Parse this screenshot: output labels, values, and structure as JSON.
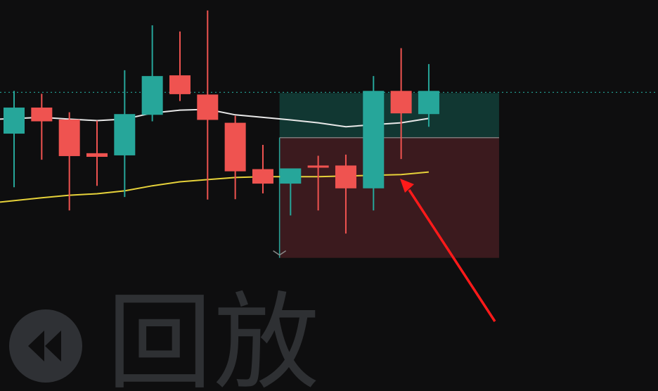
{
  "chart_data": {
    "type": "candlestick",
    "title": "",
    "xlabel": "",
    "ylabel": "",
    "ylim": [
      0,
      100
    ],
    "grid": false,
    "candles": [
      {
        "o": 63.1,
        "h": 74.9,
        "l": 48.3,
        "c": 70.3
      },
      {
        "o": 70.3,
        "h": 74.1,
        "l": 55.9,
        "c": 66.5
      },
      {
        "o": 67.0,
        "h": 69.0,
        "l": 41.9,
        "c": 56.9
      },
      {
        "o": 57.7,
        "h": 66.7,
        "l": 48.7,
        "c": 56.7
      },
      {
        "o": 57.1,
        "h": 80.6,
        "l": 45.6,
        "c": 68.5
      },
      {
        "o": 68.3,
        "h": 93.0,
        "l": 66.5,
        "c": 79.0
      },
      {
        "o": 79.2,
        "h": 91.3,
        "l": 72.1,
        "c": 74.0
      },
      {
        "o": 73.9,
        "h": 97.1,
        "l": 44.9,
        "c": 66.9
      },
      {
        "o": 66.1,
        "h": 68.0,
        "l": 45.0,
        "c": 52.7
      },
      {
        "o": 53.3,
        "h": 60.0,
        "l": 46.6,
        "c": 49.3
      },
      {
        "o": 49.3,
        "h": 53.5,
        "l": 40.5,
        "c": 53.5
      },
      {
        "o": 54.3,
        "h": 57.0,
        "l": 41.9,
        "c": 53.7
      },
      {
        "o": 54.3,
        "h": 57.3,
        "l": 35.5,
        "c": 48.0
      },
      {
        "o": 48.0,
        "h": 79.0,
        "l": 41.9,
        "c": 74.9
      },
      {
        "o": 74.9,
        "h": 86.7,
        "l": 56.1,
        "c": 68.7
      },
      {
        "o": 68.5,
        "h": 82.3,
        "l": 65.0,
        "c": 74.9
      }
    ],
    "series": [
      {
        "values": [
          67.1,
          67.6,
          67.1,
          66.7,
          67.1,
          68.8,
          69.6,
          69.8,
          68.3,
          67.6,
          66.9,
          66.1,
          65.0,
          65.6,
          66.1,
          67.3
        ]
      },
      {
        "values": [
          44.2,
          45.4,
          46.1,
          46.5,
          47.3,
          48.7,
          49.8,
          50.4,
          51.0,
          51.2,
          51.2,
          51.2,
          51.4,
          51.6,
          51.8,
          52.5
        ]
      }
    ],
    "position": {
      "entry": 62.0,
      "take_profit": 74.3,
      "stop_loss": 28.8,
      "start_index": 10,
      "end_index": 18
    },
    "dotted_level": 74.5,
    "colors": {
      "background": "#0e0e0f",
      "up": "#26a69a",
      "down": "#ef5350",
      "ma_fast": "#e8e8e8",
      "ma_slow": "#e6d23a",
      "profit_zone": "#123a35",
      "loss_zone": "#3e1b20",
      "annotation_arrow": "#ff1a1a"
    }
  },
  "replay": {
    "label": "回放",
    "icon": "rewind-icon"
  }
}
